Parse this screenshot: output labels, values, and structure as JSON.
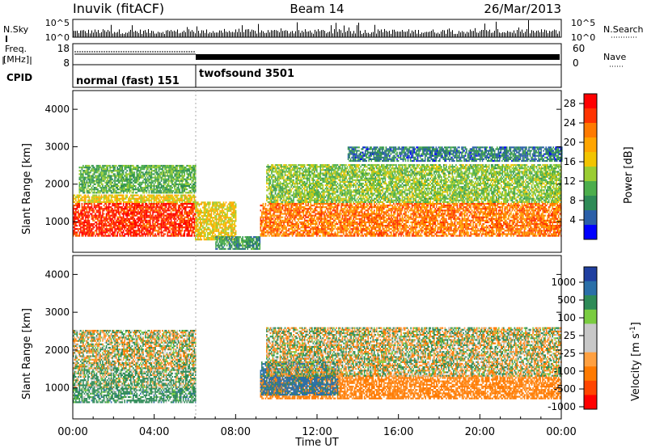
{
  "header": {
    "station": "Inuvik (fitACF)",
    "beam": "Beam 14",
    "date": "26/Mar/2013"
  },
  "aux": {
    "nsky_label": "N.Sky",
    "nsky_ticks": [
      "10^5",
      "10^0"
    ],
    "nsearch_label": "N.Search",
    "nsearch_ticks": [
      "10^5",
      "10^0"
    ],
    "freq_label": [
      "Freq.",
      "[MHz]"
    ],
    "freq_ticks": [
      "18",
      "8"
    ],
    "nave_label": "Nave",
    "nave_ticks": [
      "60",
      "0"
    ],
    "cpid_label": "CPID",
    "cpid_segments": [
      {
        "label": "normal (fast) 151",
        "start": "00:00",
        "end": "06:00"
      },
      {
        "label": "twofsound 3501",
        "start": "06:00",
        "end": "24:00"
      }
    ]
  },
  "x_axis": {
    "label": "Time UT",
    "ticks": [
      "00:00",
      "04:00",
      "08:00",
      "12:00",
      "16:00",
      "20:00",
      "00:00"
    ],
    "range_hours": [
      0,
      24
    ]
  },
  "power_panel": {
    "ylabel": "Slant Range [km]",
    "yticks": [
      "4000",
      "3000",
      "2000",
      "1000"
    ],
    "colorbar_label": "Power [dB]",
    "colorbar_ticks": [
      "28",
      "24",
      "20",
      "16",
      "12",
      "8",
      "4"
    ],
    "colors": [
      "#ff0000",
      "#ff3300",
      "#ff7a00",
      "#ffa500",
      "#f2c400",
      "#9acd32",
      "#4cae4c",
      "#2e8b57",
      "#2b5fa8",
      "#0000ff"
    ]
  },
  "velocity_panel": {
    "ylabel": "Slant Range [km]",
    "yticks": [
      "4000",
      "3000",
      "2000",
      "1000"
    ],
    "colorbar_label": "Velocity [m s",
    "colorbar_label_sup": "-1",
    "colorbar_ticks": [
      "1000",
      "500",
      "100",
      "25",
      "-25",
      "-100",
      "-500",
      "-1000"
    ],
    "colors": [
      "#1f3fa0",
      "#2a6fa8",
      "#2e8b57",
      "#7acc40",
      "#c8c8c8",
      "#c8c8c8",
      "#ffa040",
      "#ff7a00",
      "#ff4500",
      "#ff0000"
    ]
  },
  "chart_data": [
    {
      "type": "heatmap",
      "title": "Beam 14",
      "xlabel": "Time UT",
      "ylabel": "Slant Range [km]",
      "xlim": [
        "00:00",
        "24:00"
      ],
      "ylim": [
        180,
        4500
      ],
      "colorbar": {
        "label": "Power [dB]",
        "range": [
          0,
          30
        ]
      },
      "bands": [
        {
          "t": [
            0.0,
            6.0
          ],
          "range_km": [
            600,
            1500
          ],
          "dB": 28
        },
        {
          "t": [
            0.0,
            6.0
          ],
          "range_km": [
            1500,
            1700
          ],
          "dB": 18
        },
        {
          "t": [
            0.3,
            6.0
          ],
          "range_km": [
            1750,
            2500
          ],
          "dB": 12
        },
        {
          "t": [
            6.0,
            8.0
          ],
          "range_km": [
            500,
            1500
          ],
          "dB": 18
        },
        {
          "t": [
            7.0,
            9.2
          ],
          "range_km": [
            250,
            600
          ],
          "dB": 10
        },
        {
          "t": [
            9.2,
            24.0
          ],
          "range_km": [
            600,
            1500
          ],
          "dB": 24
        },
        {
          "t": [
            9.5,
            24.0
          ],
          "range_km": [
            1500,
            2500
          ],
          "dB": 14
        },
        {
          "t": [
            13.5,
            24.0
          ],
          "range_km": [
            2600,
            3000
          ],
          "dB": 8
        }
      ]
    },
    {
      "type": "heatmap",
      "xlabel": "Time UT",
      "ylabel": "Slant Range [km]",
      "xlim": [
        "00:00",
        "24:00"
      ],
      "ylim": [
        180,
        4500
      ],
      "colorbar": {
        "label": "Velocity [m s-1]",
        "ticks": [
          1000,
          500,
          100,
          25,
          -25,
          -100,
          -500,
          -1000
        ]
      },
      "bands": [
        {
          "t": [
            0.0,
            6.0
          ],
          "range_km": [
            600,
            1000
          ],
          "velocity": 150
        },
        {
          "t": [
            0.0,
            6.0
          ],
          "range_km": [
            1000,
            1500
          ],
          "velocity": 80
        },
        {
          "t": [
            0.0,
            6.0
          ],
          "range_km": [
            1500,
            2500
          ],
          "velocity": 0
        },
        {
          "t": [
            9.2,
            24.0
          ],
          "range_km": [
            700,
            1300
          ],
          "velocity": -200
        },
        {
          "t": [
            9.2,
            13.0
          ],
          "range_km": [
            800,
            1700
          ],
          "velocity": 400
        },
        {
          "t": [
            9.5,
            24.0
          ],
          "range_km": [
            1300,
            2600
          ],
          "velocity": 0
        }
      ]
    }
  ]
}
